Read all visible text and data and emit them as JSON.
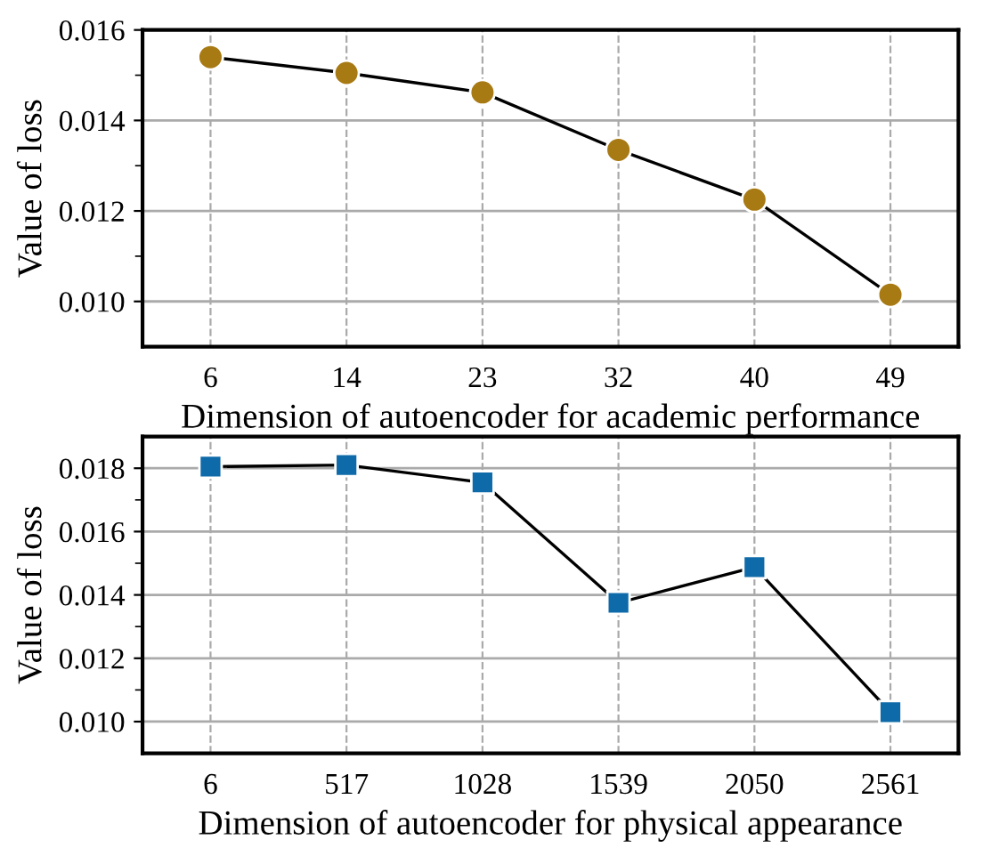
{
  "chart_data": [
    {
      "type": "line",
      "xlabel": "Dimension of autoencoder for academic performance",
      "ylabel": "Value of loss",
      "categories": [
        "6",
        "14",
        "23",
        "32",
        "40",
        "49"
      ],
      "series": [
        {
          "color": "#a87a14",
          "values": [
            0.0154,
            0.01505,
            0.01462,
            0.01335,
            0.01225,
            0.01015
          ]
        }
      ],
      "marker": "circle",
      "ylim": [
        0.009,
        0.016
      ],
      "yticks": [
        {
          "value": 0.01,
          "label": "0.010"
        },
        {
          "value": 0.012,
          "label": "0.012"
        },
        {
          "value": 0.014,
          "label": "0.014"
        },
        {
          "value": 0.016,
          "label": "0.016"
        }
      ],
      "grid": true,
      "legend": false
    },
    {
      "type": "line",
      "xlabel": "Dimension of autoencoder for physical appearance",
      "ylabel": "Value of loss",
      "categories": [
        "6",
        "517",
        "1028",
        "1539",
        "2050",
        "2561"
      ],
      "series": [
        {
          "color": "#0e6aa8",
          "values": [
            0.01805,
            0.0181,
            0.01755,
            0.01375,
            0.01488,
            0.0103
          ]
        }
      ],
      "marker": "square",
      "ylim": [
        0.009,
        0.019
      ],
      "yticks": [
        {
          "value": 0.01,
          "label": "0.010"
        },
        {
          "value": 0.012,
          "label": "0.012"
        },
        {
          "value": 0.014,
          "label": "0.014"
        },
        {
          "value": 0.016,
          "label": "0.016"
        },
        {
          "value": 0.018,
          "label": "0.018"
        }
      ],
      "grid": true,
      "legend": false
    }
  ]
}
